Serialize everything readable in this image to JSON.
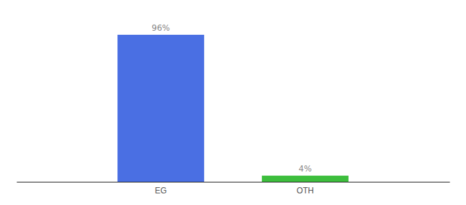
{
  "chart_data": {
    "type": "bar",
    "categories": [
      "EG",
      "OTH"
    ],
    "values": [
      96,
      4
    ],
    "value_labels": [
      "96%",
      "4%"
    ],
    "colors": [
      "#4A6FE3",
      "#3DBE3D"
    ],
    "ylim": [
      0,
      108
    ],
    "data_labels": true,
    "tick_labels": "x",
    "grid": false
  }
}
